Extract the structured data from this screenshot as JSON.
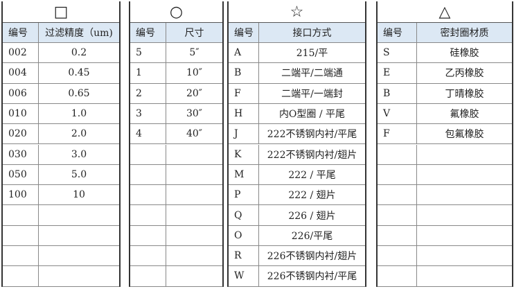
{
  "tables": [
    {
      "symbol": "□",
      "headers": [
        "编号",
        "过滤精度（um)"
      ],
      "rows": [
        [
          "002",
          "0.2"
        ],
        [
          "004",
          "0.45"
        ],
        [
          "006",
          "0.65"
        ],
        [
          "010",
          "1.0"
        ],
        [
          "020",
          "2.0"
        ],
        [
          "030",
          "3.0"
        ],
        [
          "050",
          "5.0"
        ],
        [
          "100",
          "10"
        ]
      ]
    },
    {
      "symbol": "○",
      "headers": [
        "编号",
        "尺寸"
      ],
      "rows": [
        [
          "5",
          "5″"
        ],
        [
          "1",
          "10″"
        ],
        [
          "2",
          "20″"
        ],
        [
          "3",
          "30″"
        ],
        [
          "4",
          "40″"
        ]
      ]
    },
    {
      "symbol": "☆",
      "headers": [
        "编号",
        "接口方式"
      ],
      "rows": [
        [
          "A",
          "215/平"
        ],
        [
          "B",
          "二端平/二端通"
        ],
        [
          "F",
          "二端平/一端封"
        ],
        [
          "H",
          "内O型圈 / 平尾"
        ],
        [
          "J",
          "222不锈钢内衬/平尾"
        ],
        [
          "K",
          "222不锈钢内衬/翅片"
        ],
        [
          "M",
          "222 / 平尾"
        ],
        [
          "P",
          "222 / 翅片"
        ],
        [
          "Q",
          "226 / 翅片"
        ],
        [
          "O",
          "226/平尾"
        ],
        [
          "R",
          "226不锈钢内衬/翅片"
        ],
        [
          "W",
          "226不锈钢内衬/平尾"
        ]
      ]
    },
    {
      "symbol": "△",
      "headers": [
        "编号",
        "密封圈材质"
      ],
      "rows": [
        [
          "S",
          "硅橡胶"
        ],
        [
          "E",
          "乙丙橡胶"
        ],
        [
          "B",
          "丁晴橡胶"
        ],
        [
          "V",
          "氟橡胶"
        ],
        [
          "F",
          "包氟橡胶"
        ]
      ]
    }
  ]
}
